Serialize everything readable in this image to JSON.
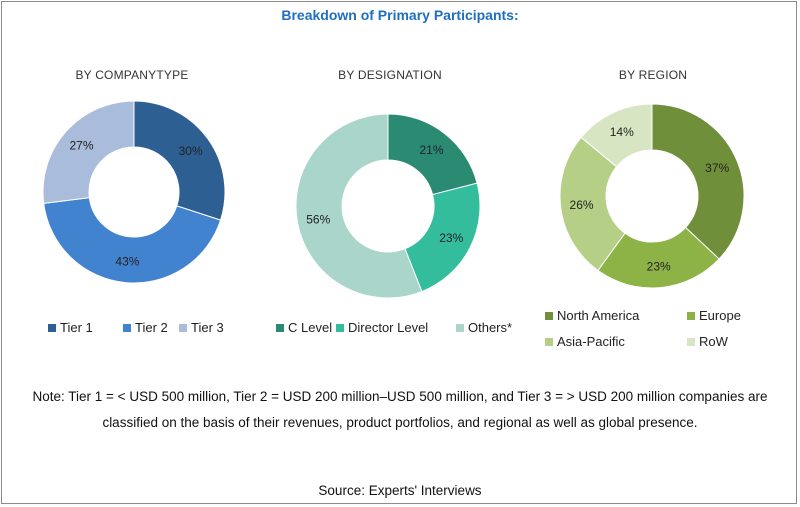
{
  "title": "Breakdown of Primary Participants:",
  "chart_data": [
    {
      "type": "pie",
      "title": "BY COMPANYTYPE",
      "categories": [
        "Tier 1",
        "Tier 2",
        "Tier 3"
      ],
      "values": [
        30,
        43,
        27
      ],
      "value_labels": [
        "30%",
        "43%",
        "27%"
      ],
      "colors": [
        "#2e5f93",
        "#4283cf",
        "#a9bcdb"
      ]
    },
    {
      "type": "pie",
      "title": "BY DESIGNATION",
      "categories": [
        "C Level",
        "Director Level",
        "Others*"
      ],
      "values": [
        21,
        23,
        56
      ],
      "value_labels": [
        "21%",
        "23%",
        "56%"
      ],
      "colors": [
        "#2a8a72",
        "#33bd9c",
        "#a9d5ca"
      ]
    },
    {
      "type": "pie",
      "title": "BY REGION",
      "categories": [
        "North America",
        "Europe",
        "Asia-Pacific",
        "RoW"
      ],
      "values": [
        37,
        23,
        26,
        14
      ],
      "value_labels": [
        "37%",
        "23%",
        "26%",
        "14%"
      ],
      "colors": [
        "#6f8f3a",
        "#8db245",
        "#b5cf86",
        "#d8e5c2"
      ]
    }
  ],
  "note": "Note: Tier 1 = < USD 500 million, Tier 2 = USD 200 million–USD 500 million, and Tier 3 = > USD 200 million companies are classified on the basis of their revenues, product portfolios, and regional as well as global presence.",
  "source": "Source: Experts' Interviews"
}
